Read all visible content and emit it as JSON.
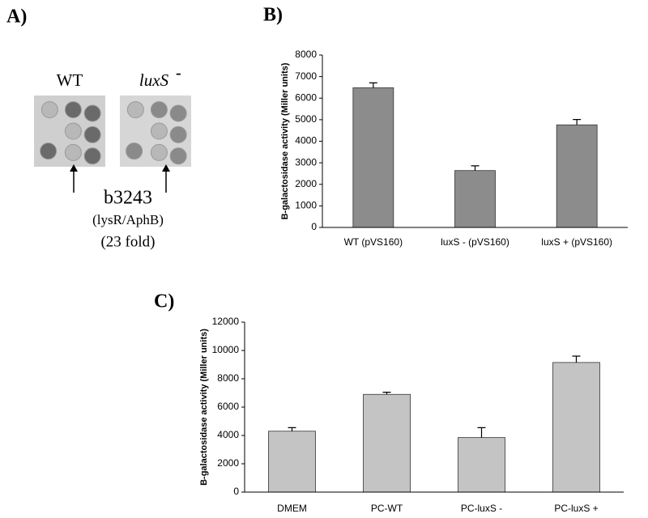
{
  "panel_a": {
    "label": "A)",
    "strains": [
      "WT",
      "luxS"
    ],
    "superscript": "-",
    "gene": "b3243",
    "annotation": "(lysR/AphB)",
    "fold": "(23 fold)"
  },
  "chart_data": [
    {
      "type": "bar",
      "panel_label": "B)",
      "ylabel": "B-galactosidase activity (Miller units)",
      "categories": [
        "WT (pVS160)",
        "luxS - (pVS160)",
        "luxS + (pVS160)"
      ],
      "values": [
        6480,
        2640,
        4760
      ],
      "errors": [
        230,
        220,
        250
      ],
      "color": "#8c8c8c",
      "ylim": [
        0,
        8000
      ],
      "yticks": [
        0,
        1000,
        2000,
        3000,
        4000,
        5000,
        6000,
        7000,
        8000
      ]
    },
    {
      "type": "bar",
      "panel_label": "C)",
      "ylabel": "B-galactosidase activity (Miller units)",
      "categories": [
        "DMEM",
        "PC-WT",
        "PC-luxS -",
        "PC-luxS +"
      ],
      "values": [
        4300,
        6900,
        3850,
        9150
      ],
      "errors": [
        250,
        150,
        700,
        450
      ],
      "color": "#c4c4c4",
      "ylim": [
        0,
        12000
      ],
      "yticks": [
        0,
        2000,
        4000,
        6000,
        8000,
        10000,
        12000
      ]
    }
  ]
}
